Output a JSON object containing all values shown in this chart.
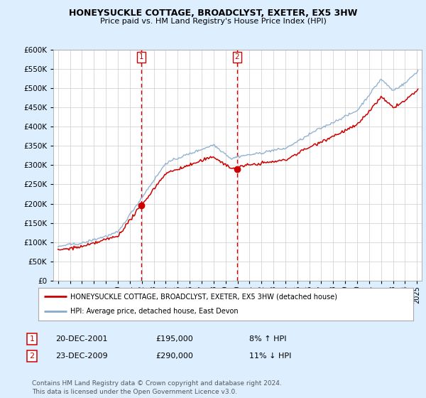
{
  "title": "HONEYSUCKLE COTTAGE, BROADCLYST, EXETER, EX5 3HW",
  "subtitle": "Price paid vs. HM Land Registry's House Price Index (HPI)",
  "legend_label_red": "HONEYSUCKLE COTTAGE, BROADCLYST, EXETER, EX5 3HW (detached house)",
  "legend_label_blue": "HPI: Average price, detached house, East Devon",
  "table_entries": [
    {
      "num": "1",
      "date": "20-DEC-2001",
      "price": "£195,000",
      "hpi": "8% ↑ HPI"
    },
    {
      "num": "2",
      "date": "23-DEC-2009",
      "price": "£290,000",
      "hpi": "11% ↓ HPI"
    }
  ],
  "footnote": "Contains HM Land Registry data © Crown copyright and database right 2024.\nThis data is licensed under the Open Government Licence v3.0.",
  "vline1_x": 2001.96,
  "vline2_x": 2009.96,
  "sale1_x": 2001.96,
  "sale1_y": 195000,
  "sale2_x": 2009.96,
  "sale2_y": 290000,
  "ylim": [
    0,
    600000
  ],
  "xlim_start": 1994.6,
  "xlim_end": 2025.4,
  "yticks": [
    0,
    50000,
    100000,
    150000,
    200000,
    250000,
    300000,
    350000,
    400000,
    450000,
    500000,
    550000,
    600000
  ],
  "xticks": [
    1995,
    1996,
    1997,
    1998,
    1999,
    2000,
    2001,
    2002,
    2003,
    2004,
    2005,
    2006,
    2007,
    2008,
    2009,
    2010,
    2011,
    2012,
    2013,
    2014,
    2015,
    2016,
    2017,
    2018,
    2019,
    2020,
    2021,
    2022,
    2023,
    2024,
    2025
  ],
  "red_color": "#cc0000",
  "blue_color": "#88aacc",
  "vline_color": "#cc0000",
  "background_color": "#ddeeff",
  "plot_bg": "#ffffff",
  "grid_color": "#cccccc",
  "title_fontsize": 9,
  "subtitle_fontsize": 8
}
